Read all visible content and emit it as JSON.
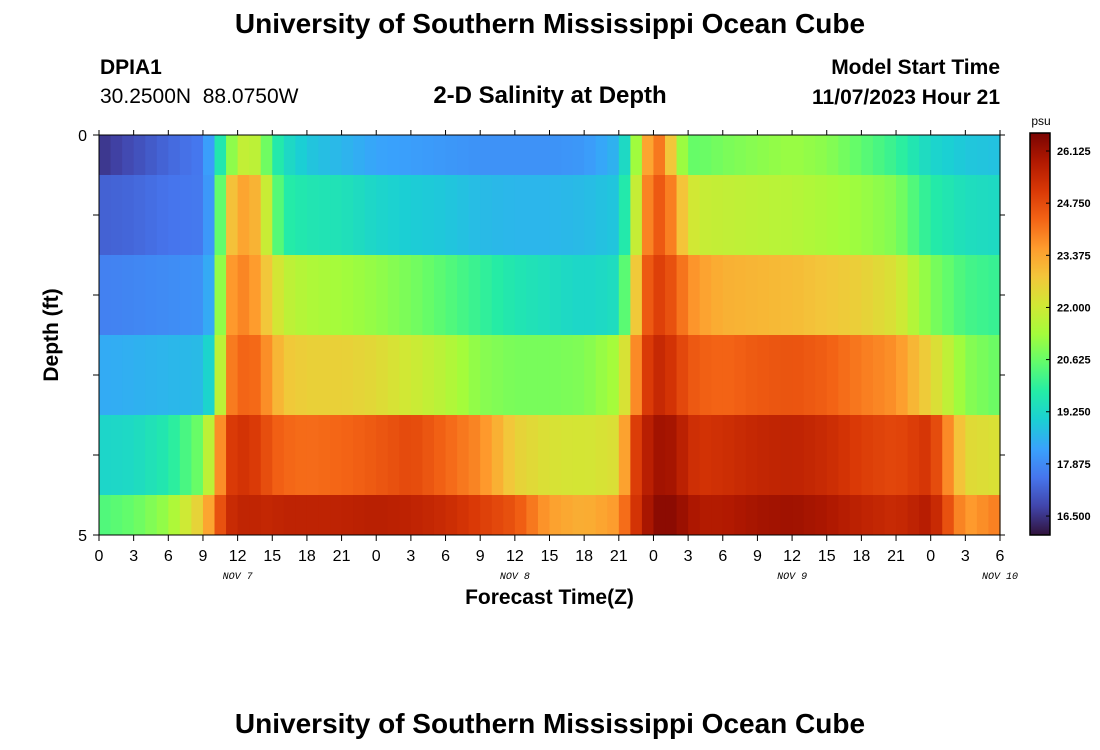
{
  "page": {
    "title": "University of Southern Mississippi Ocean Cube",
    "station": "DPIA1",
    "coords": "30.2500N  88.0750W",
    "chart_title": "2-D Salinity at Depth",
    "start_label": "Model Start Time",
    "start_value": "11/07/2023 Hour 21",
    "bottom_title": "University of Southern Mississippi Ocean Cube"
  },
  "chart_data": {
    "type": "heatmap",
    "title": "2-D Salinity at Depth",
    "xlabel": "Forecast Time(Z)",
    "ylabel": "Depth (ft)",
    "ylim": [
      0,
      5
    ],
    "y_tick_labels": [
      "0",
      "5"
    ],
    "x_tick_labels": [
      "0",
      "3",
      "6",
      "9",
      "12",
      "15",
      "18",
      "21",
      "0",
      "3",
      "6",
      "9",
      "12",
      "15",
      "18",
      "21",
      "0",
      "3",
      "6",
      "9",
      "12",
      "15",
      "18",
      "21",
      "0",
      "3",
      "6"
    ],
    "day_labels": [
      {
        "label": "NOV 7",
        "hour": 12
      },
      {
        "label": "NOV 8",
        "hour": 36
      },
      {
        "label": "NOV 9",
        "hour": 60
      },
      {
        "label": "NOV 10",
        "hour": 78
      }
    ],
    "x_hours": [
      0,
      78
    ],
    "colorbar": {
      "unit": "psu",
      "range": [
        16.0,
        26.6
      ],
      "tick_values": [
        26.125,
        24.75,
        23.375,
        22.0,
        20.625,
        19.25,
        17.875,
        16.5
      ],
      "tick_labels": [
        "26.125",
        "24.750",
        "23.375",
        "22.000",
        "20.625",
        "19.250",
        "17.875",
        "16.500"
      ],
      "colors": [
        "#30123b",
        "#4145ab",
        "#4675ed",
        "#39a2fc",
        "#1bcfd4",
        "#24eca6",
        "#61fc6c",
        "#a4fc3b",
        "#d1e834",
        "#f3c63a",
        "#fe9b2d",
        "#f36315",
        "#d93806",
        "#b11901",
        "#7a0402"
      ]
    },
    "bands": [
      {
        "depth_from": 0.0,
        "depth_to": 0.5,
        "hours": [
          0,
          3,
          6,
          9,
          10,
          11,
          12,
          13,
          14,
          15,
          16,
          18,
          21,
          24,
          27,
          30,
          33,
          36,
          39,
          42,
          45,
          46,
          47,
          48,
          49,
          50,
          51,
          52,
          54,
          57,
          60,
          63,
          66,
          69,
          72,
          75,
          78
        ],
        "values": [
          16.5,
          16.9,
          17.3,
          17.6,
          18.8,
          20.5,
          21.6,
          22.0,
          21.4,
          20.0,
          19.4,
          18.9,
          18.6,
          18.3,
          18.2,
          18.1,
          18.0,
          18.0,
          18.0,
          18.1,
          18.6,
          20.0,
          22.5,
          24.3,
          23.8,
          21.8,
          20.6,
          20.6,
          20.8,
          21.0,
          21.2,
          21.0,
          20.5,
          20.0,
          19.2,
          18.9,
          18.8
        ]
      },
      {
        "depth_from": 0.5,
        "depth_to": 1.5,
        "hours": [
          0,
          3,
          6,
          9,
          10,
          11,
          12,
          13,
          14,
          15,
          16,
          18,
          21,
          24,
          27,
          30,
          33,
          36,
          39,
          42,
          45,
          46,
          47,
          48,
          49,
          50,
          51,
          52,
          54,
          57,
          60,
          63,
          66,
          69,
          72,
          75,
          78
        ],
        "values": [
          17.2,
          17.3,
          17.5,
          17.6,
          18.6,
          22.5,
          23.3,
          23.5,
          22.8,
          21.0,
          19.8,
          19.6,
          19.5,
          19.2,
          19.0,
          18.9,
          18.7,
          18.6,
          18.6,
          18.7,
          18.9,
          20.5,
          23.2,
          24.6,
          24.4,
          23.5,
          22.2,
          21.9,
          21.8,
          21.7,
          21.6,
          21.4,
          21.2,
          20.9,
          19.8,
          19.4,
          19.3
        ]
      },
      {
        "depth_from": 1.5,
        "depth_to": 2.5,
        "hours": [
          0,
          3,
          6,
          9,
          10,
          11,
          12,
          13,
          14,
          15,
          16,
          18,
          21,
          24,
          27,
          30,
          33,
          36,
          39,
          42,
          45,
          46,
          47,
          48,
          49,
          50,
          51,
          52,
          54,
          57,
          60,
          63,
          66,
          69,
          72,
          75,
          78
        ],
        "values": [
          17.7,
          17.8,
          17.9,
          18.0,
          18.8,
          23.4,
          23.8,
          23.9,
          23.2,
          22.4,
          21.8,
          21.5,
          21.3,
          21.1,
          20.8,
          20.4,
          20.0,
          19.6,
          19.4,
          19.2,
          19.4,
          21.5,
          24.0,
          25.0,
          24.9,
          24.4,
          23.8,
          23.5,
          23.2,
          23.1,
          23.0,
          22.8,
          22.6,
          22.2,
          20.9,
          20.2,
          20.0
        ]
      },
      {
        "depth_from": 2.5,
        "depth_to": 3.5,
        "hours": [
          0,
          3,
          6,
          9,
          10,
          11,
          12,
          13,
          14,
          15,
          16,
          18,
          21,
          24,
          27,
          30,
          33,
          36,
          39,
          42,
          45,
          46,
          47,
          48,
          49,
          50,
          51,
          52,
          54,
          57,
          60,
          63,
          66,
          69,
          72,
          75,
          78
        ],
        "values": [
          18.4,
          18.5,
          18.6,
          18.7,
          19.6,
          23.8,
          24.2,
          24.4,
          24.1,
          23.4,
          22.8,
          22.6,
          22.6,
          22.4,
          22.0,
          21.6,
          21.0,
          20.8,
          20.8,
          20.9,
          21.4,
          23.0,
          24.6,
          25.5,
          25.4,
          25.0,
          24.6,
          24.4,
          24.3,
          24.5,
          24.6,
          24.4,
          24.0,
          23.7,
          22.5,
          21.0,
          20.6
        ]
      },
      {
        "depth_from": 3.5,
        "depth_to": 4.5,
        "hours": [
          0,
          3,
          6,
          9,
          10,
          11,
          12,
          13,
          14,
          15,
          16,
          18,
          21,
          24,
          27,
          30,
          33,
          36,
          39,
          42,
          45,
          46,
          47,
          48,
          49,
          50,
          51,
          52,
          54,
          57,
          60,
          63,
          66,
          69,
          72,
          75,
          78
        ],
        "values": [
          19.2,
          19.3,
          19.7,
          20.8,
          22.6,
          24.9,
          25.2,
          25.2,
          24.9,
          24.5,
          24.3,
          24.2,
          24.3,
          24.5,
          24.8,
          24.3,
          23.8,
          22.6,
          22.2,
          22.1,
          22.3,
          24.6,
          25.4,
          26.0,
          26.1,
          25.9,
          25.4,
          25.2,
          25.3,
          25.5,
          25.6,
          25.4,
          25.0,
          24.8,
          25.2,
          22.4,
          22.2
        ]
      },
      {
        "depth_from": 4.5,
        "depth_to": 5.0,
        "hours": [
          0,
          3,
          6,
          9,
          10,
          11,
          12,
          13,
          14,
          15,
          16,
          18,
          21,
          24,
          27,
          30,
          33,
          36,
          39,
          42,
          45,
          46,
          47,
          48,
          49,
          50,
          51,
          52,
          54,
          57,
          60,
          63,
          66,
          69,
          72,
          75,
          78
        ],
        "values": [
          20.3,
          20.6,
          21.2,
          22.8,
          24.0,
          25.3,
          25.5,
          25.6,
          25.5,
          25.5,
          25.6,
          25.6,
          25.6,
          25.7,
          25.6,
          25.4,
          25.0,
          24.6,
          23.5,
          23.2,
          23.6,
          24.8,
          25.6,
          26.3,
          26.4,
          26.3,
          26.0,
          25.8,
          25.8,
          26.0,
          26.1,
          25.9,
          25.6,
          25.4,
          25.8,
          23.5,
          24.0
        ]
      }
    ]
  }
}
